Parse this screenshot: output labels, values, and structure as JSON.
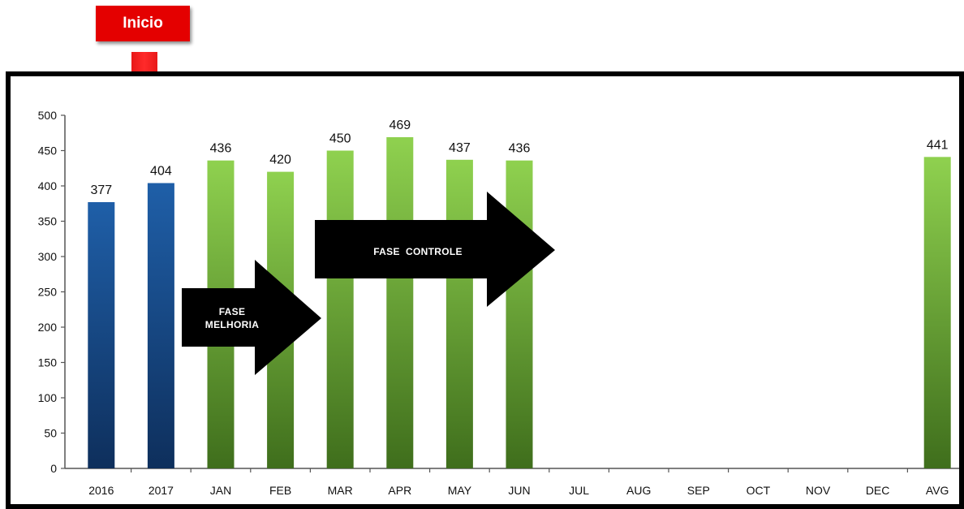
{
  "annotations": {
    "start_label": "Inicio",
    "phase_improvement": "FASE\nMELHORIA",
    "phase_control": "FASE  CONTROLE"
  },
  "colors": {
    "baseline_bar": "#1f5fa8",
    "monthly_bar": "#8fd14f",
    "start_box": "#e40000",
    "phase_arrow": "#000000"
  },
  "chart_data": {
    "type": "bar",
    "categories": [
      "2016",
      "2017",
      "JAN",
      "FEB",
      "MAR",
      "APR",
      "MAY",
      "JUN",
      "JUL",
      "AUG",
      "SEP",
      "OCT",
      "NOV",
      "DEC",
      "AVG"
    ],
    "values": [
      377,
      404,
      436,
      420,
      450,
      469,
      437,
      436,
      null,
      null,
      null,
      null,
      null,
      null,
      441
    ],
    "data_labels": [
      "377",
      "404",
      "436",
      "420",
      "450",
      "469",
      "437",
      "436",
      "",
      "",
      "",
      "",
      "",
      "",
      "441"
    ],
    "bar_color_groups": [
      "baseline",
      "baseline",
      "monthly",
      "monthly",
      "monthly",
      "monthly",
      "monthly",
      "monthly",
      "monthly",
      "monthly",
      "monthly",
      "monthly",
      "monthly",
      "monthly",
      "monthly"
    ],
    "ylim": [
      0,
      500
    ],
    "yticks": [
      "0",
      "50",
      "100",
      "150",
      "200",
      "250",
      "300",
      "350",
      "400",
      "450",
      "500"
    ],
    "grid": false,
    "legend": "none",
    "title": "",
    "xlabel": "",
    "ylabel": ""
  }
}
